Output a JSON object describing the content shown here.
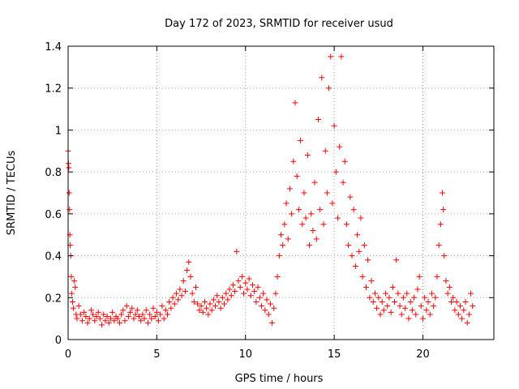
{
  "chart_data": {
    "type": "scatter",
    "title": "Day 172 of 2023, SRMTID for receiver usud",
    "xlabel": "GPS time / hours",
    "ylabel": "SRMTID / TECUs",
    "xlim": [
      0,
      24
    ],
    "ylim": [
      0,
      1.4
    ],
    "xticks": [
      0,
      5,
      10,
      15,
      20
    ],
    "xtick_labels": [
      "0",
      "5",
      "10",
      "15",
      "20"
    ],
    "yticks": [
      0,
      0.2,
      0.4,
      0.6,
      0.8,
      1,
      1.2,
      1.4
    ],
    "ytick_labels": [
      "0",
      "0.2",
      "0.4",
      "0.6",
      "0.8",
      "1",
      "1.2",
      "1.4"
    ],
    "grid": true,
    "marker": "+",
    "color": "#ff0000",
    "series": [
      {
        "name": "SRMTID",
        "points": [
          [
            0.0,
            0.9
          ],
          [
            0.02,
            0.84
          ],
          [
            0.04,
            0.82
          ],
          [
            0.06,
            0.7
          ],
          [
            0.08,
            0.62
          ],
          [
            0.1,
            0.5
          ],
          [
            0.12,
            0.45
          ],
          [
            0.15,
            0.4
          ],
          [
            0.18,
            0.3
          ],
          [
            0.2,
            0.22
          ],
          [
            0.25,
            0.18
          ],
          [
            0.3,
            0.15
          ],
          [
            0.35,
            0.28
          ],
          [
            0.4,
            0.25
          ],
          [
            0.45,
            0.12
          ],
          [
            0.5,
            0.1
          ],
          [
            0.6,
            0.16
          ],
          [
            0.7,
            0.12
          ],
          [
            0.8,
            0.09
          ],
          [
            0.9,
            0.13
          ],
          [
            1.0,
            0.11
          ],
          [
            1.1,
            0.08
          ],
          [
            1.2,
            0.1
          ],
          [
            1.3,
            0.14
          ],
          [
            1.4,
            0.12
          ],
          [
            1.5,
            0.09
          ],
          [
            1.6,
            0.11
          ],
          [
            1.7,
            0.13
          ],
          [
            1.8,
            0.1
          ],
          [
            1.9,
            0.07
          ],
          [
            2.0,
            0.12
          ],
          [
            2.1,
            0.09
          ],
          [
            2.2,
            0.11
          ],
          [
            2.3,
            0.08
          ],
          [
            2.4,
            0.1
          ],
          [
            2.5,
            0.13
          ],
          [
            2.6,
            0.09
          ],
          [
            2.7,
            0.11
          ],
          [
            2.8,
            0.1
          ],
          [
            2.9,
            0.08
          ],
          [
            3.0,
            0.12
          ],
          [
            3.1,
            0.14
          ],
          [
            3.2,
            0.09
          ],
          [
            3.3,
            0.16
          ],
          [
            3.4,
            0.11
          ],
          [
            3.5,
            0.13
          ],
          [
            3.6,
            0.15
          ],
          [
            3.7,
            0.1
          ],
          [
            3.8,
            0.12
          ],
          [
            3.9,
            0.14
          ],
          [
            4.0,
            0.11
          ],
          [
            4.1,
            0.09
          ],
          [
            4.2,
            0.12
          ],
          [
            4.3,
            0.1
          ],
          [
            4.4,
            0.14
          ],
          [
            4.5,
            0.08
          ],
          [
            4.6,
            0.12
          ],
          [
            4.7,
            0.1
          ],
          [
            4.8,
            0.15
          ],
          [
            4.9,
            0.11
          ],
          [
            5.0,
            0.13
          ],
          [
            5.1,
            0.09
          ],
          [
            5.2,
            0.12
          ],
          [
            5.3,
            0.16
          ],
          [
            5.4,
            0.1
          ],
          [
            5.5,
            0.14
          ],
          [
            5.6,
            0.12
          ],
          [
            5.7,
            0.18
          ],
          [
            5.8,
            0.15
          ],
          [
            5.9,
            0.2
          ],
          [
            6.0,
            0.17
          ],
          [
            6.1,
            0.22
          ],
          [
            6.2,
            0.19
          ],
          [
            6.3,
            0.24
          ],
          [
            6.4,
            0.21
          ],
          [
            6.5,
            0.28
          ],
          [
            6.6,
            0.23
          ],
          [
            6.7,
            0.33
          ],
          [
            6.8,
            0.37
          ],
          [
            6.9,
            0.3
          ],
          [
            7.0,
            0.22
          ],
          [
            7.1,
            0.18
          ],
          [
            7.2,
            0.25
          ],
          [
            7.3,
            0.17
          ],
          [
            7.4,
            0.14
          ],
          [
            7.5,
            0.16
          ],
          [
            7.6,
            0.13
          ],
          [
            7.7,
            0.18
          ],
          [
            7.8,
            0.15
          ],
          [
            7.9,
            0.12
          ],
          [
            8.0,
            0.17
          ],
          [
            8.1,
            0.14
          ],
          [
            8.2,
            0.19
          ],
          [
            8.3,
            0.16
          ],
          [
            8.4,
            0.21
          ],
          [
            8.5,
            0.18
          ],
          [
            8.6,
            0.15
          ],
          [
            8.7,
            0.2
          ],
          [
            8.8,
            0.17
          ],
          [
            8.9,
            0.22
          ],
          [
            9.0,
            0.19
          ],
          [
            9.1,
            0.24
          ],
          [
            9.2,
            0.21
          ],
          [
            9.3,
            0.26
          ],
          [
            9.4,
            0.23
          ],
          [
            9.5,
            0.42
          ],
          [
            9.6,
            0.28
          ],
          [
            9.7,
            0.25
          ],
          [
            9.8,
            0.3
          ],
          [
            9.9,
            0.22
          ],
          [
            10.0,
            0.27
          ],
          [
            10.1,
            0.24
          ],
          [
            10.2,
            0.29
          ],
          [
            10.3,
            0.21
          ],
          [
            10.4,
            0.26
          ],
          [
            10.5,
            0.23
          ],
          [
            10.6,
            0.18
          ],
          [
            10.7,
            0.25
          ],
          [
            10.8,
            0.2
          ],
          [
            10.9,
            0.16
          ],
          [
            11.0,
            0.22
          ],
          [
            11.1,
            0.14
          ],
          [
            11.2,
            0.19
          ],
          [
            11.3,
            0.12
          ],
          [
            11.4,
            0.17
          ],
          [
            11.5,
            0.08
          ],
          [
            11.6,
            0.15
          ],
          [
            11.7,
            0.22
          ],
          [
            11.8,
            0.3
          ],
          [
            11.9,
            0.4
          ],
          [
            12.0,
            0.5
          ],
          [
            12.1,
            0.45
          ],
          [
            12.2,
            0.55
          ],
          [
            12.3,
            0.65
          ],
          [
            12.4,
            0.48
          ],
          [
            12.5,
            0.72
          ],
          [
            12.6,
            0.6
          ],
          [
            12.7,
            0.85
          ],
          [
            12.8,
            1.13
          ],
          [
            12.9,
            0.78
          ],
          [
            13.0,
            0.62
          ],
          [
            13.1,
            0.95
          ],
          [
            13.2,
            0.55
          ],
          [
            13.3,
            0.7
          ],
          [
            13.4,
            0.58
          ],
          [
            13.5,
            0.88
          ],
          [
            13.6,
            0.45
          ],
          [
            13.7,
            0.6
          ],
          [
            13.8,
            0.52
          ],
          [
            13.9,
            0.75
          ],
          [
            14.0,
            0.48
          ],
          [
            14.1,
            1.05
          ],
          [
            14.2,
            0.62
          ],
          [
            14.3,
            1.25
          ],
          [
            14.4,
            0.55
          ],
          [
            14.5,
            0.9
          ],
          [
            14.6,
            0.7
          ],
          [
            14.7,
            1.2
          ],
          [
            14.8,
            1.35
          ],
          [
            14.9,
            0.65
          ],
          [
            15.0,
            1.02
          ],
          [
            15.1,
            0.8
          ],
          [
            15.2,
            0.58
          ],
          [
            15.3,
            0.92
          ],
          [
            15.4,
            1.35
          ],
          [
            15.5,
            0.75
          ],
          [
            15.6,
            0.85
          ],
          [
            15.7,
            0.55
          ],
          [
            15.8,
            0.45
          ],
          [
            15.9,
            0.68
          ],
          [
            16.0,
            0.4
          ],
          [
            16.1,
            0.62
          ],
          [
            16.2,
            0.35
          ],
          [
            16.3,
            0.5
          ],
          [
            16.4,
            0.42
          ],
          [
            16.5,
            0.58
          ],
          [
            16.6,
            0.3
          ],
          [
            16.7,
            0.45
          ],
          [
            16.8,
            0.25
          ],
          [
            16.9,
            0.38
          ],
          [
            17.0,
            0.2
          ],
          [
            17.1,
            0.28
          ],
          [
            17.2,
            0.18
          ],
          [
            17.3,
            0.22
          ],
          [
            17.4,
            0.15
          ],
          [
            17.5,
            0.2
          ],
          [
            17.6,
            0.12
          ],
          [
            17.7,
            0.18
          ],
          [
            17.8,
            0.14
          ],
          [
            17.9,
            0.22
          ],
          [
            18.0,
            0.16
          ],
          [
            18.1,
            0.2
          ],
          [
            18.2,
            0.13
          ],
          [
            18.3,
            0.25
          ],
          [
            18.4,
            0.18
          ],
          [
            18.5,
            0.38
          ],
          [
            18.6,
            0.22
          ],
          [
            18.7,
            0.16
          ],
          [
            18.8,
            0.12
          ],
          [
            18.9,
            0.2
          ],
          [
            19.0,
            0.15
          ],
          [
            19.1,
            0.22
          ],
          [
            19.2,
            0.1
          ],
          [
            19.3,
            0.18
          ],
          [
            19.4,
            0.14
          ],
          [
            19.5,
            0.2
          ],
          [
            19.6,
            0.12
          ],
          [
            19.7,
            0.24
          ],
          [
            19.8,
            0.3
          ],
          [
            19.9,
            0.16
          ],
          [
            20.0,
            0.1
          ],
          [
            20.1,
            0.2
          ],
          [
            20.2,
            0.14
          ],
          [
            20.3,
            0.18
          ],
          [
            20.4,
            0.12
          ],
          [
            20.5,
            0.22
          ],
          [
            20.6,
            0.16
          ],
          [
            20.7,
            0.2
          ],
          [
            20.8,
            0.3
          ],
          [
            20.9,
            0.45
          ],
          [
            21.0,
            0.55
          ],
          [
            21.1,
            0.7
          ],
          [
            21.15,
            0.62
          ],
          [
            21.2,
            0.4
          ],
          [
            21.3,
            0.28
          ],
          [
            21.4,
            0.22
          ],
          [
            21.5,
            0.25
          ],
          [
            21.6,
            0.18
          ],
          [
            21.7,
            0.2
          ],
          [
            21.8,
            0.14
          ],
          [
            21.9,
            0.18
          ],
          [
            22.0,
            0.12
          ],
          [
            22.1,
            0.16
          ],
          [
            22.2,
            0.1
          ],
          [
            22.3,
            0.14
          ],
          [
            22.4,
            0.18
          ],
          [
            22.5,
            0.08
          ],
          [
            22.6,
            0.12
          ],
          [
            22.7,
            0.22
          ],
          [
            22.8,
            0.16
          ]
        ]
      }
    ]
  }
}
